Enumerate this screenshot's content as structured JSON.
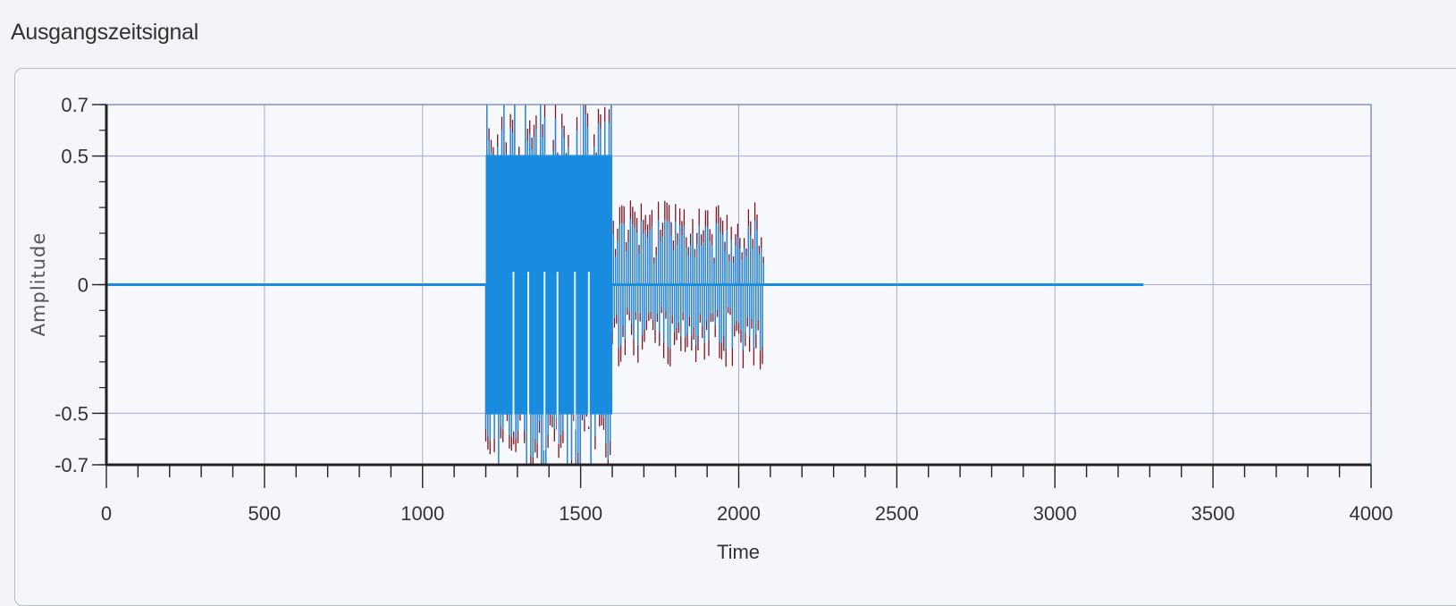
{
  "panel": {
    "title": "Ausgangszeitsignal"
  },
  "chart_data": {
    "type": "line",
    "title": "",
    "xlabel": "Time",
    "ylabel": "Amplitude",
    "xlim": [
      0,
      4000
    ],
    "ylim": [
      -0.7,
      0.7
    ],
    "xticks": [
      0,
      500,
      1000,
      1500,
      2000,
      2500,
      3000,
      3500,
      4000
    ],
    "yticks": [
      0.7,
      0.5,
      0,
      -0.5,
      -0.7
    ],
    "xtick_labels": [
      "0",
      "500",
      "1000",
      "1500",
      "2000",
      "2500",
      "3000",
      "3500",
      "4000"
    ],
    "ytick_labels": [
      "0.7",
      "0.5",
      "0",
      "-0.5",
      "-0.7"
    ],
    "grid": true,
    "colors": {
      "signal": "#1a8ce0",
      "envelope": "#7a1620",
      "grid": "#a8a8dc",
      "axis": "#222222",
      "plot_bg": "#f7f8fb"
    },
    "segments": [
      {
        "x_start": 1200,
        "x_end": 1600,
        "amplitude": 0.7,
        "clipped": true
      },
      {
        "x_start": 1600,
        "x_end": 2080,
        "amplitude": 0.3,
        "clipped": false
      }
    ],
    "signal_end": 3280
  }
}
